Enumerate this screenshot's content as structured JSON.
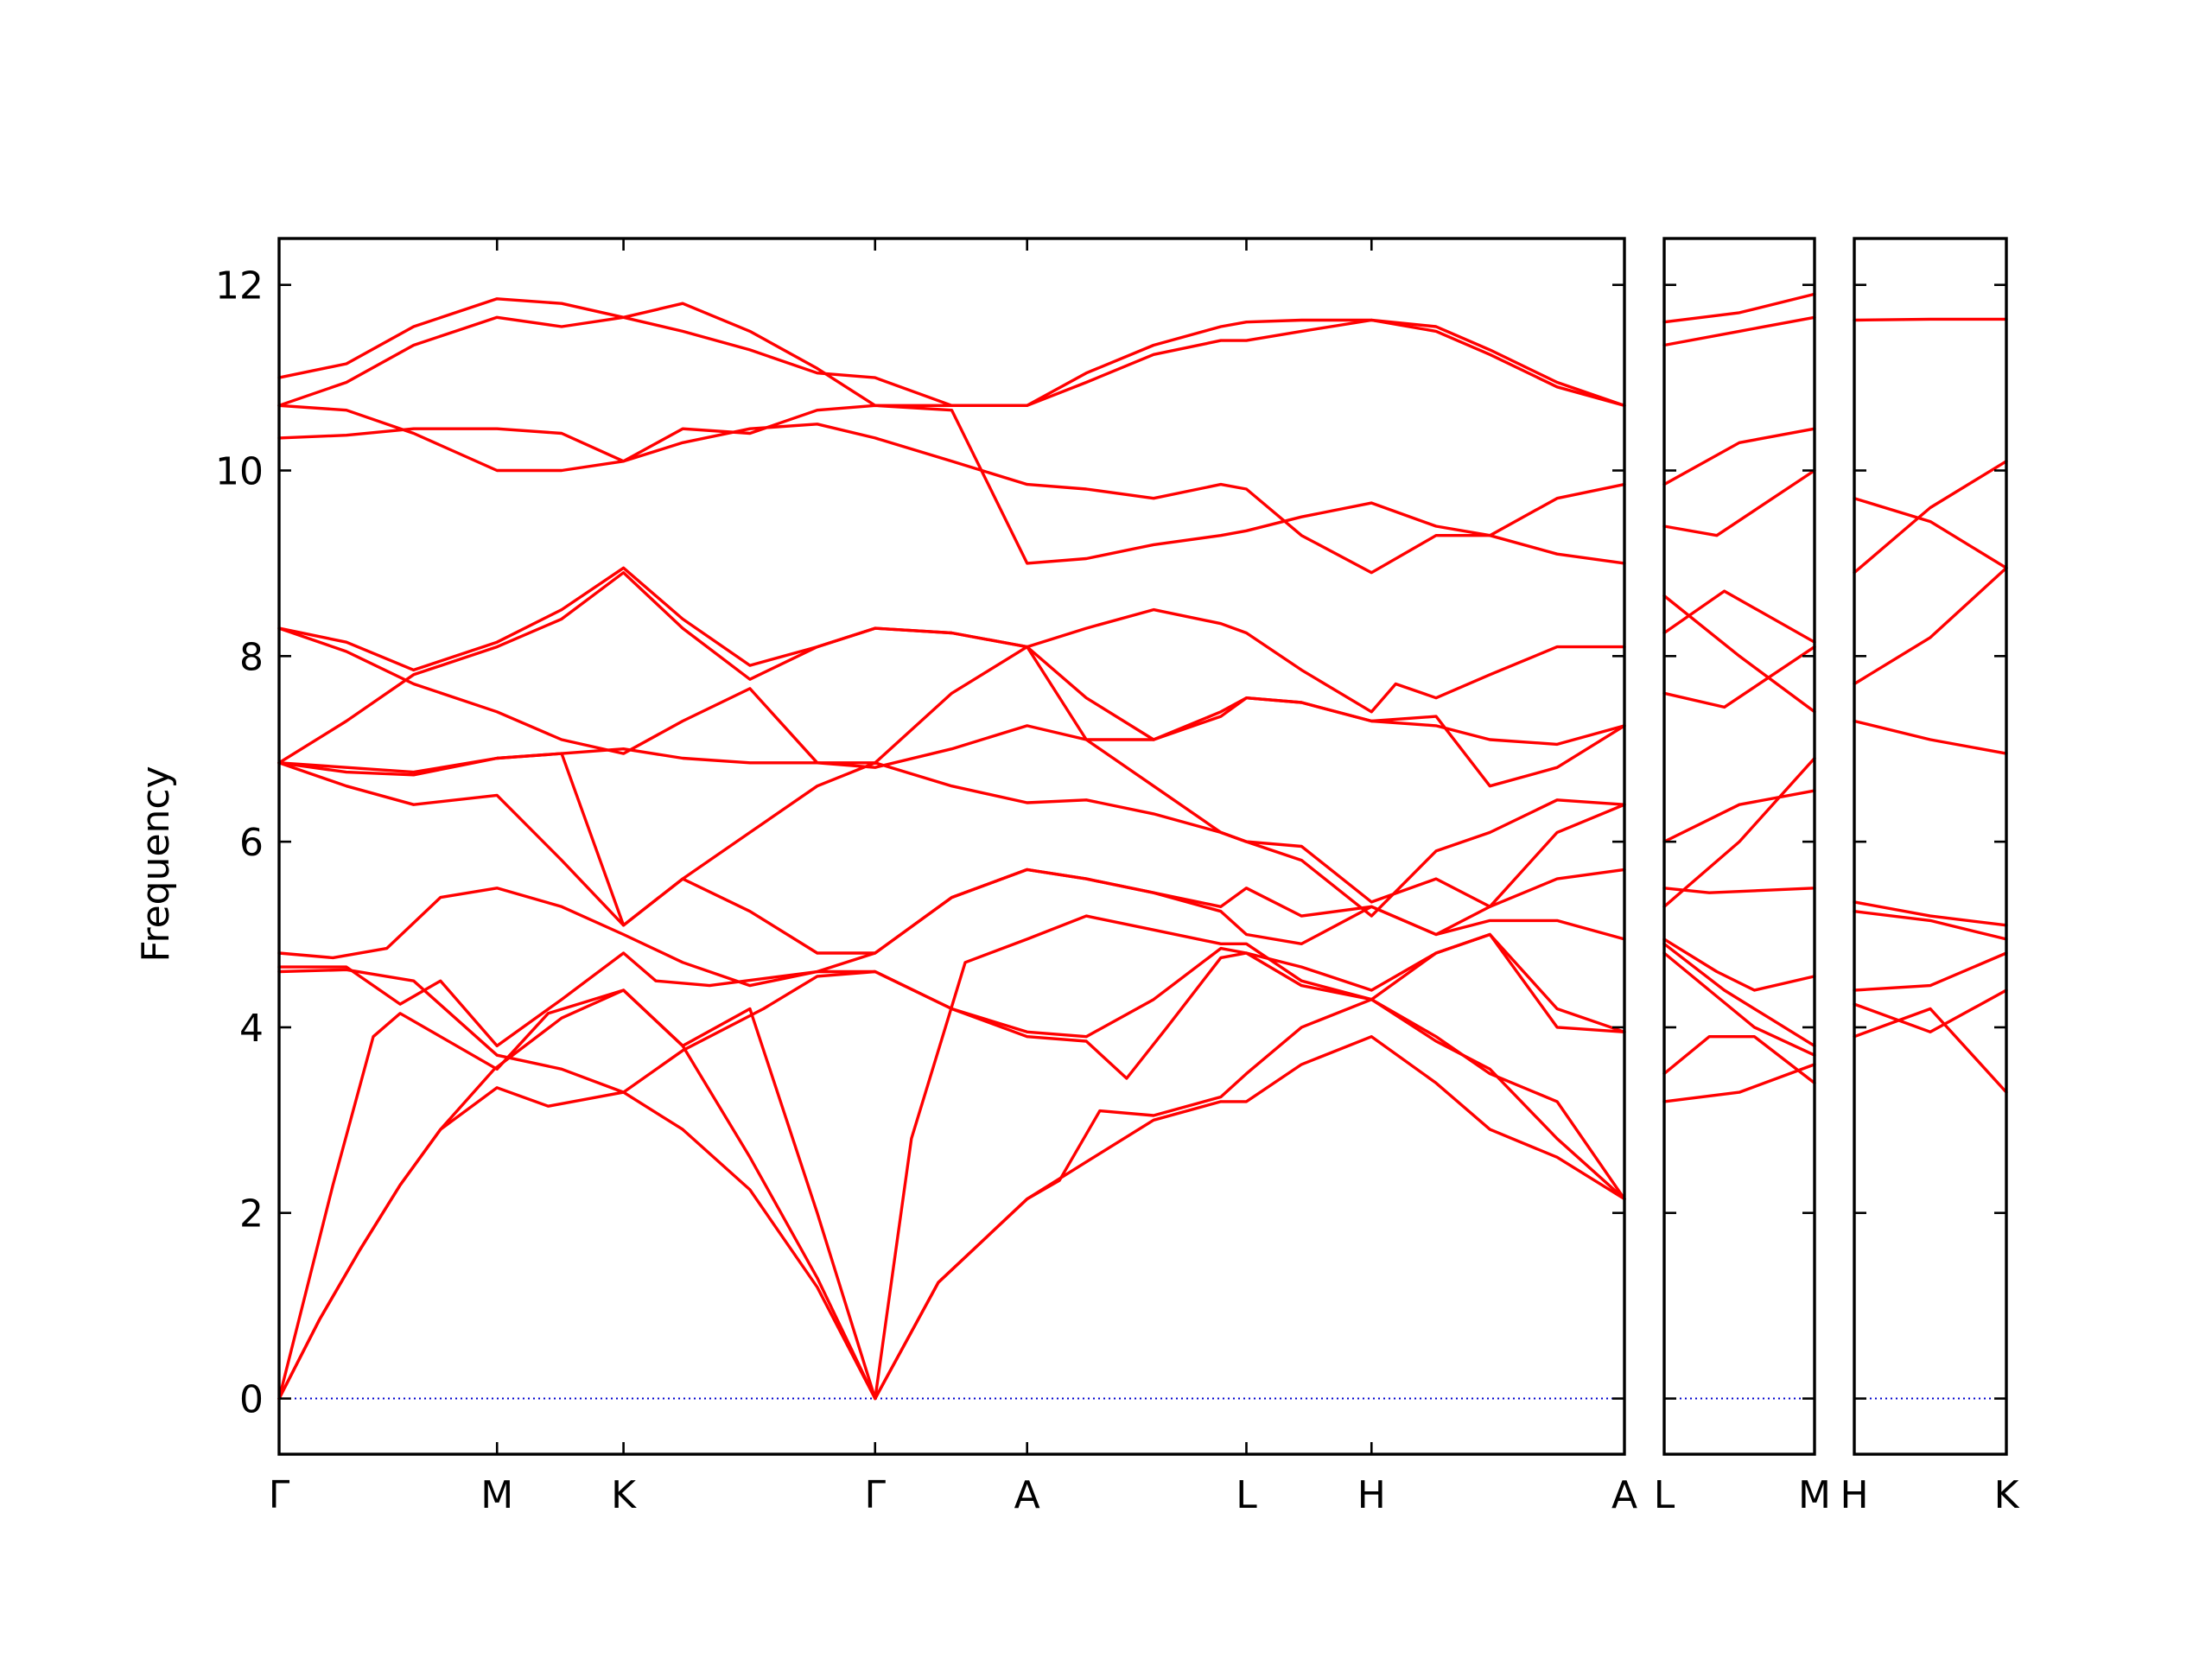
{
  "chart_data": {
    "type": "line",
    "ylabel": "Frequency",
    "ylim": [
      -0.6,
      12.5
    ],
    "yticks": [
      0,
      2,
      4,
      6,
      8,
      10,
      12
    ],
    "grid": false,
    "legend": "none",
    "colors": {
      "bands": "#ff0000",
      "zero_line": "#0000cc",
      "frame": "#000000"
    },
    "segments": [
      {
        "path": [
          "Γ",
          "M",
          "K",
          "Γ",
          "A",
          "L",
          "H",
          "A"
        ],
        "x": [
          0,
          0.162,
          0.256,
          0.443,
          0.556,
          0.719,
          0.812,
          1.0
        ]
      },
      {
        "path": [
          "L",
          "M"
        ],
        "x": [
          0,
          1
        ]
      },
      {
        "path": [
          "H",
          "K"
        ],
        "x": [
          0,
          1
        ]
      }
    ],
    "bands": [
      {
        "segment": 0,
        "x": [
          0,
          0.03,
          0.06,
          0.09,
          0.12,
          0.16,
          0.21,
          0.256,
          0.3,
          0.35,
          0.4,
          0.443,
          0.49,
          0.556,
          0.6,
          0.65,
          0.7,
          0.719,
          0.76,
          0.812,
          0.86,
          0.9,
          0.95,
          1.0
        ],
        "y": [
          0,
          0.85,
          1.6,
          2.3,
          2.9,
          3.55,
          4.1,
          4.4,
          3.8,
          2.6,
          1.3,
          0,
          1.25,
          2.15,
          2.55,
          3.0,
          3.2,
          3.2,
          3.6,
          3.9,
          3.4,
          2.9,
          2.6,
          2.15
        ]
      },
      {
        "segment": 0,
        "x": [
          0,
          0.03,
          0.06,
          0.09,
          0.12,
          0.162,
          0.2,
          0.256,
          0.3,
          0.35,
          0.4,
          0.443,
          0.49,
          0.556,
          0.58,
          0.61,
          0.65,
          0.7,
          0.719,
          0.76,
          0.812,
          0.86,
          0.9,
          0.95,
          1.0
        ],
        "y": [
          0,
          0.85,
          1.6,
          2.3,
          2.9,
          3.35,
          3.15,
          3.3,
          2.9,
          2.25,
          1.2,
          0,
          1.25,
          2.15,
          2.35,
          3.1,
          3.05,
          3.25,
          3.5,
          4.0,
          4.3,
          3.9,
          3.5,
          3.2,
          2.15
        ]
      },
      {
        "segment": 0,
        "x": [
          0,
          0.04,
          0.07,
          0.09,
          0.12,
          0.162,
          0.2,
          0.256,
          0.3,
          0.35,
          0.4,
          0.443,
          0.47,
          0.51,
          0.556,
          0.6,
          0.65,
          0.7,
          0.719,
          0.76,
          0.812,
          0.86,
          0.9,
          0.95,
          1.0
        ],
        "y": [
          0,
          2.3,
          3.9,
          4.15,
          3.9,
          3.55,
          4.15,
          4.4,
          3.8,
          4.2,
          2.0,
          0,
          2.8,
          4.7,
          4.95,
          5.2,
          5.05,
          4.9,
          4.9,
          4.5,
          4.3,
          3.85,
          3.55,
          2.8,
          2.15
        ]
      },
      {
        "segment": 0,
        "x": [
          0,
          0.05,
          0.1,
          0.162,
          0.21,
          0.256,
          0.3,
          0.36,
          0.4,
          0.443,
          0.5,
          0.556,
          0.6,
          0.63,
          0.66,
          0.7,
          0.719,
          0.76,
          0.812,
          0.86,
          0.9,
          0.95,
          1.0
        ],
        "y": [
          4.6,
          4.62,
          4.5,
          3.7,
          3.55,
          3.3,
          3.75,
          4.2,
          4.55,
          4.6,
          4.2,
          3.9,
          3.85,
          3.45,
          4.0,
          4.75,
          4.8,
          4.65,
          4.4,
          4.8,
          5.0,
          4.2,
          3.95
        ]
      },
      {
        "segment": 0,
        "x": [
          0,
          0.05,
          0.09,
          0.12,
          0.162,
          0.21,
          0.256,
          0.28,
          0.32,
          0.4,
          0.443,
          0.5,
          0.556,
          0.6,
          0.65,
          0.7,
          0.719,
          0.76,
          0.812,
          0.86,
          0.9,
          0.95,
          1.0
        ],
        "y": [
          4.65,
          4.65,
          4.25,
          4.5,
          3.8,
          4.3,
          4.8,
          4.5,
          4.45,
          4.6,
          4.6,
          4.2,
          3.95,
          3.9,
          4.3,
          4.85,
          4.8,
          4.45,
          4.3,
          4.8,
          5.0,
          4.0,
          3.95
        ]
      },
      {
        "segment": 0,
        "x": [
          0,
          0.04,
          0.08,
          0.12,
          0.162,
          0.21,
          0.256,
          0.3,
          0.35,
          0.4,
          0.443,
          0.5,
          0.556,
          0.6,
          0.65,
          0.7,
          0.719,
          0.76,
          0.812,
          0.86,
          0.9,
          0.95,
          1.0
        ],
        "y": [
          4.8,
          4.75,
          4.85,
          5.4,
          5.5,
          5.3,
          5.0,
          4.7,
          4.45,
          4.6,
          4.8,
          5.4,
          5.7,
          5.6,
          5.45,
          5.25,
          5.0,
          4.9,
          5.3,
          5.0,
          5.15,
          5.15,
          4.95
        ]
      },
      {
        "segment": 0,
        "x": [
          0,
          0.05,
          0.1,
          0.162,
          0.21,
          0.256,
          0.3,
          0.35,
          0.4,
          0.443,
          0.5,
          0.556,
          0.6,
          0.65,
          0.7,
          0.719,
          0.76,
          0.812,
          0.86,
          0.9,
          0.95,
          1.0
        ],
        "y": [
          6.85,
          6.6,
          6.4,
          6.5,
          5.8,
          5.1,
          5.6,
          5.25,
          4.8,
          4.8,
          5.4,
          5.7,
          5.6,
          5.45,
          5.3,
          5.5,
          5.2,
          5.3,
          5.0,
          5.3,
          5.6,
          5.7
        ]
      },
      {
        "segment": 0,
        "x": [
          0,
          0.05,
          0.1,
          0.162,
          0.21,
          0.256,
          0.3,
          0.35,
          0.4,
          0.443,
          0.5,
          0.556,
          0.6,
          0.65,
          0.7,
          0.719,
          0.76,
          0.812,
          0.86,
          0.9,
          0.95,
          1.0
        ],
        "y": [
          6.85,
          6.75,
          6.72,
          6.9,
          6.95,
          5.1,
          5.6,
          6.1,
          6.6,
          6.85,
          6.6,
          6.42,
          6.45,
          6.3,
          6.1,
          6.0,
          5.95,
          5.35,
          5.6,
          5.3,
          6.1,
          6.4
        ]
      },
      {
        "segment": 0,
        "x": [
          0,
          0.05,
          0.1,
          0.162,
          0.21,
          0.256,
          0.3,
          0.35,
          0.4,
          0.443,
          0.5,
          0.556,
          0.6,
          0.65,
          0.7,
          0.719,
          0.76,
          0.812,
          0.86,
          0.9,
          0.95,
          1.0
        ],
        "y": [
          6.85,
          6.8,
          6.75,
          6.9,
          6.95,
          7.0,
          6.9,
          6.85,
          6.85,
          6.8,
          7.0,
          7.25,
          7.1,
          6.6,
          6.1,
          6.0,
          5.8,
          5.2,
          5.9,
          6.1,
          6.45,
          6.4
        ]
      },
      {
        "segment": 0,
        "x": [
          0,
          0.05,
          0.1,
          0.162,
          0.21,
          0.256,
          0.3,
          0.35,
          0.4,
          0.443,
          0.5,
          0.556,
          0.6,
          0.65,
          0.7,
          0.719,
          0.76,
          0.812,
          0.86,
          0.9,
          0.95,
          1.0
        ],
        "y": [
          6.85,
          7.3,
          7.8,
          8.1,
          8.4,
          8.9,
          8.3,
          7.75,
          8.1,
          8.3,
          8.25,
          8.1,
          7.1,
          7.1,
          7.4,
          7.55,
          7.5,
          7.3,
          7.25,
          7.1,
          7.05,
          7.25
        ]
      },
      {
        "segment": 0,
        "x": [
          0,
          0.05,
          0.1,
          0.162,
          0.21,
          0.256,
          0.3,
          0.35,
          0.4,
          0.443,
          0.5,
          0.556,
          0.6,
          0.65,
          0.7,
          0.719,
          0.76,
          0.812,
          0.86,
          0.9,
          0.95,
          1.0
        ],
        "y": [
          8.3,
          8.15,
          7.85,
          8.15,
          8.5,
          8.95,
          8.4,
          7.9,
          8.1,
          8.3,
          8.25,
          8.1,
          7.55,
          7.1,
          7.35,
          7.55,
          7.5,
          7.3,
          7.35,
          6.6,
          6.8,
          7.25
        ]
      },
      {
        "segment": 0,
        "x": [
          0,
          0.05,
          0.1,
          0.162,
          0.21,
          0.256,
          0.3,
          0.35,
          0.4,
          0.443,
          0.5,
          0.556,
          0.6,
          0.65,
          0.7,
          0.719,
          0.76,
          0.812,
          0.83,
          0.86,
          0.9,
          0.95,
          1.0
        ],
        "y": [
          8.3,
          8.05,
          7.7,
          7.4,
          7.1,
          6.95,
          7.3,
          7.65,
          6.85,
          6.85,
          7.6,
          8.1,
          8.3,
          8.5,
          8.35,
          8.25,
          7.85,
          7.4,
          7.7,
          7.55,
          7.8,
          8.1,
          8.1
        ]
      },
      {
        "segment": 0,
        "x": [
          0,
          0.05,
          0.1,
          0.162,
          0.21,
          0.256,
          0.3,
          0.35,
          0.4,
          0.443,
          0.5,
          0.556,
          0.6,
          0.65,
          0.7,
          0.719,
          0.76,
          0.812,
          0.86,
          0.9,
          0.95,
          1.0
        ],
        "y": [
          10.35,
          10.38,
          10.45,
          10.45,
          10.4,
          10.1,
          10.3,
          10.45,
          10.5,
          10.35,
          10.1,
          9.85,
          9.8,
          9.7,
          9.85,
          9.8,
          9.3,
          8.9,
          9.3,
          9.3,
          9.1,
          9.0
        ]
      },
      {
        "segment": 0,
        "x": [
          0,
          0.05,
          0.1,
          0.162,
          0.21,
          0.256,
          0.3,
          0.35,
          0.4,
          0.443,
          0.5,
          0.556,
          0.6,
          0.65,
          0.7,
          0.719,
          0.76,
          0.812,
          0.86,
          0.9,
          0.95,
          1.0
        ],
        "y": [
          10.7,
          10.65,
          10.4,
          10.0,
          10.0,
          10.1,
          10.45,
          10.4,
          10.65,
          10.7,
          10.65,
          9.0,
          9.05,
          9.2,
          9.3,
          9.35,
          9.5,
          9.65,
          9.4,
          9.3,
          9.7,
          9.85
        ]
      },
      {
        "segment": 0,
        "x": [
          0,
          0.05,
          0.1,
          0.162,
          0.21,
          0.256,
          0.3,
          0.35,
          0.4,
          0.443,
          0.5,
          0.556,
          0.6,
          0.65,
          0.7,
          0.719,
          0.76,
          0.812,
          0.86,
          0.9,
          0.95,
          1.0
        ],
        "y": [
          10.7,
          10.95,
          11.35,
          11.65,
          11.55,
          11.65,
          11.8,
          11.5,
          11.1,
          10.7,
          10.7,
          10.7,
          10.95,
          11.25,
          11.4,
          11.4,
          11.5,
          11.62,
          11.55,
          11.3,
          10.95,
          10.7
        ]
      },
      {
        "segment": 0,
        "x": [
          0,
          0.05,
          0.1,
          0.162,
          0.21,
          0.256,
          0.3,
          0.35,
          0.4,
          0.443,
          0.5,
          0.556,
          0.6,
          0.65,
          0.7,
          0.719,
          0.76,
          0.812,
          0.86,
          0.9,
          0.95,
          1.0
        ],
        "y": [
          11.0,
          11.15,
          11.55,
          11.85,
          11.8,
          11.65,
          11.5,
          11.3,
          11.05,
          11.0,
          10.7,
          10.7,
          11.05,
          11.35,
          11.55,
          11.6,
          11.62,
          11.62,
          11.5,
          11.25,
          10.9,
          10.7
        ]
      },
      {
        "segment": 1,
        "x": [
          0,
          0.5,
          1
        ],
        "y": [
          3.2,
          3.3,
          3.6
        ]
      },
      {
        "segment": 1,
        "x": [
          0,
          0.3,
          0.6,
          1
        ],
        "y": [
          3.5,
          3.9,
          3.9,
          3.4
        ]
      },
      {
        "segment": 1,
        "x": [
          0,
          0.3,
          0.6,
          1
        ],
        "y": [
          4.8,
          4.4,
          4.0,
          3.7
        ]
      },
      {
        "segment": 1,
        "x": [
          0,
          0.35,
          0.6,
          1
        ],
        "y": [
          4.95,
          4.6,
          4.4,
          4.55
        ]
      },
      {
        "segment": 1,
        "x": [
          0,
          0.4,
          0.7,
          1
        ],
        "y": [
          4.9,
          4.4,
          4.1,
          3.8
        ]
      },
      {
        "segment": 1,
        "x": [
          0,
          0.3,
          1
        ],
        "y": [
          5.5,
          5.45,
          5.5
        ]
      },
      {
        "segment": 1,
        "x": [
          0,
          0.5,
          1
        ],
        "y": [
          5.3,
          6.0,
          6.9
        ]
      },
      {
        "segment": 1,
        "x": [
          0,
          0.5,
          1
        ],
        "y": [
          6.0,
          6.4,
          6.55
        ]
      },
      {
        "segment": 1,
        "x": [
          0,
          0.4,
          1
        ],
        "y": [
          7.6,
          7.45,
          8.1
        ]
      },
      {
        "segment": 1,
        "x": [
          0,
          0.4,
          1
        ],
        "y": [
          8.25,
          8.7,
          8.15
        ]
      },
      {
        "segment": 1,
        "x": [
          0,
          0.5,
          1
        ],
        "y": [
          8.65,
          8.0,
          7.4
        ]
      },
      {
        "segment": 1,
        "x": [
          0,
          0.35,
          1
        ],
        "y": [
          9.4,
          9.3,
          10.0
        ]
      },
      {
        "segment": 1,
        "x": [
          0,
          0.5,
          1
        ],
        "y": [
          9.85,
          10.3,
          10.45
        ]
      },
      {
        "segment": 1,
        "x": [
          0,
          0.5,
          1
        ],
        "y": [
          11.35,
          11.5,
          11.65
        ]
      },
      {
        "segment": 1,
        "x": [
          0,
          0.5,
          1
        ],
        "y": [
          11.6,
          11.7,
          11.9
        ]
      },
      {
        "segment": 2,
        "x": [
          0,
          0.5,
          1
        ],
        "y": [
          3.9,
          4.2,
          3.3
        ]
      },
      {
        "segment": 2,
        "x": [
          0,
          0.5,
          1
        ],
        "y": [
          4.25,
          3.95,
          4.4
        ]
      },
      {
        "segment": 2,
        "x": [
          0,
          0.5,
          1
        ],
        "y": [
          4.4,
          4.45,
          4.8
        ]
      },
      {
        "segment": 2,
        "x": [
          0,
          0.5,
          1
        ],
        "y": [
          5.25,
          5.15,
          4.95
        ]
      },
      {
        "segment": 2,
        "x": [
          0,
          0.5,
          1
        ],
        "y": [
          5.35,
          5.2,
          5.1
        ]
      },
      {
        "segment": 2,
        "x": [
          0,
          0.5,
          1
        ],
        "y": [
          7.3,
          7.1,
          6.95
        ]
      },
      {
        "segment": 2,
        "x": [
          0,
          0.5,
          1
        ],
        "y": [
          7.7,
          8.2,
          8.95
        ]
      },
      {
        "segment": 2,
        "x": [
          0,
          0.5,
          1
        ],
        "y": [
          8.9,
          9.6,
          10.1
        ]
      },
      {
        "segment": 2,
        "x": [
          0,
          0.5,
          1
        ],
        "y": [
          9.7,
          9.45,
          8.95
        ]
      },
      {
        "segment": 2,
        "x": [
          0,
          0.5,
          1
        ],
        "y": [
          11.62,
          11.63,
          11.63
        ]
      }
    ]
  }
}
